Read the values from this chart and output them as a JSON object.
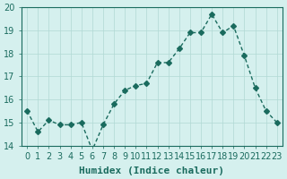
{
  "x": [
    0,
    1,
    2,
    3,
    4,
    5,
    6,
    7,
    8,
    9,
    10,
    11,
    12,
    13,
    14,
    15,
    16,
    17,
    18,
    19,
    20,
    21,
    22,
    23
  ],
  "y": [
    15.5,
    14.6,
    15.1,
    14.9,
    14.9,
    15.0,
    13.8,
    14.9,
    15.8,
    16.4,
    16.6,
    16.7,
    17.6,
    17.6,
    18.2,
    18.9,
    18.9,
    19.7,
    18.9,
    19.2,
    17.9,
    16.5,
    15.5,
    15.0
  ],
  "line_color": "#1a6b5e",
  "marker": "D",
  "marker_size": 3,
  "bg_color": "#d5f0ee",
  "grid_color": "#b0d8d4",
  "xlabel": "Humidex (Indice chaleur)",
  "ylim": [
    14,
    20
  ],
  "xlim": [
    -0.5,
    23.5
  ],
  "yticks": [
    14,
    15,
    16,
    17,
    18,
    19,
    20
  ],
  "xticks": [
    0,
    1,
    2,
    3,
    4,
    5,
    6,
    7,
    8,
    9,
    10,
    11,
    12,
    13,
    14,
    15,
    16,
    17,
    18,
    19,
    20,
    21,
    22,
    23
  ],
  "tick_color": "#1a6b5e",
  "label_fontsize": 8,
  "tick_fontsize": 7
}
